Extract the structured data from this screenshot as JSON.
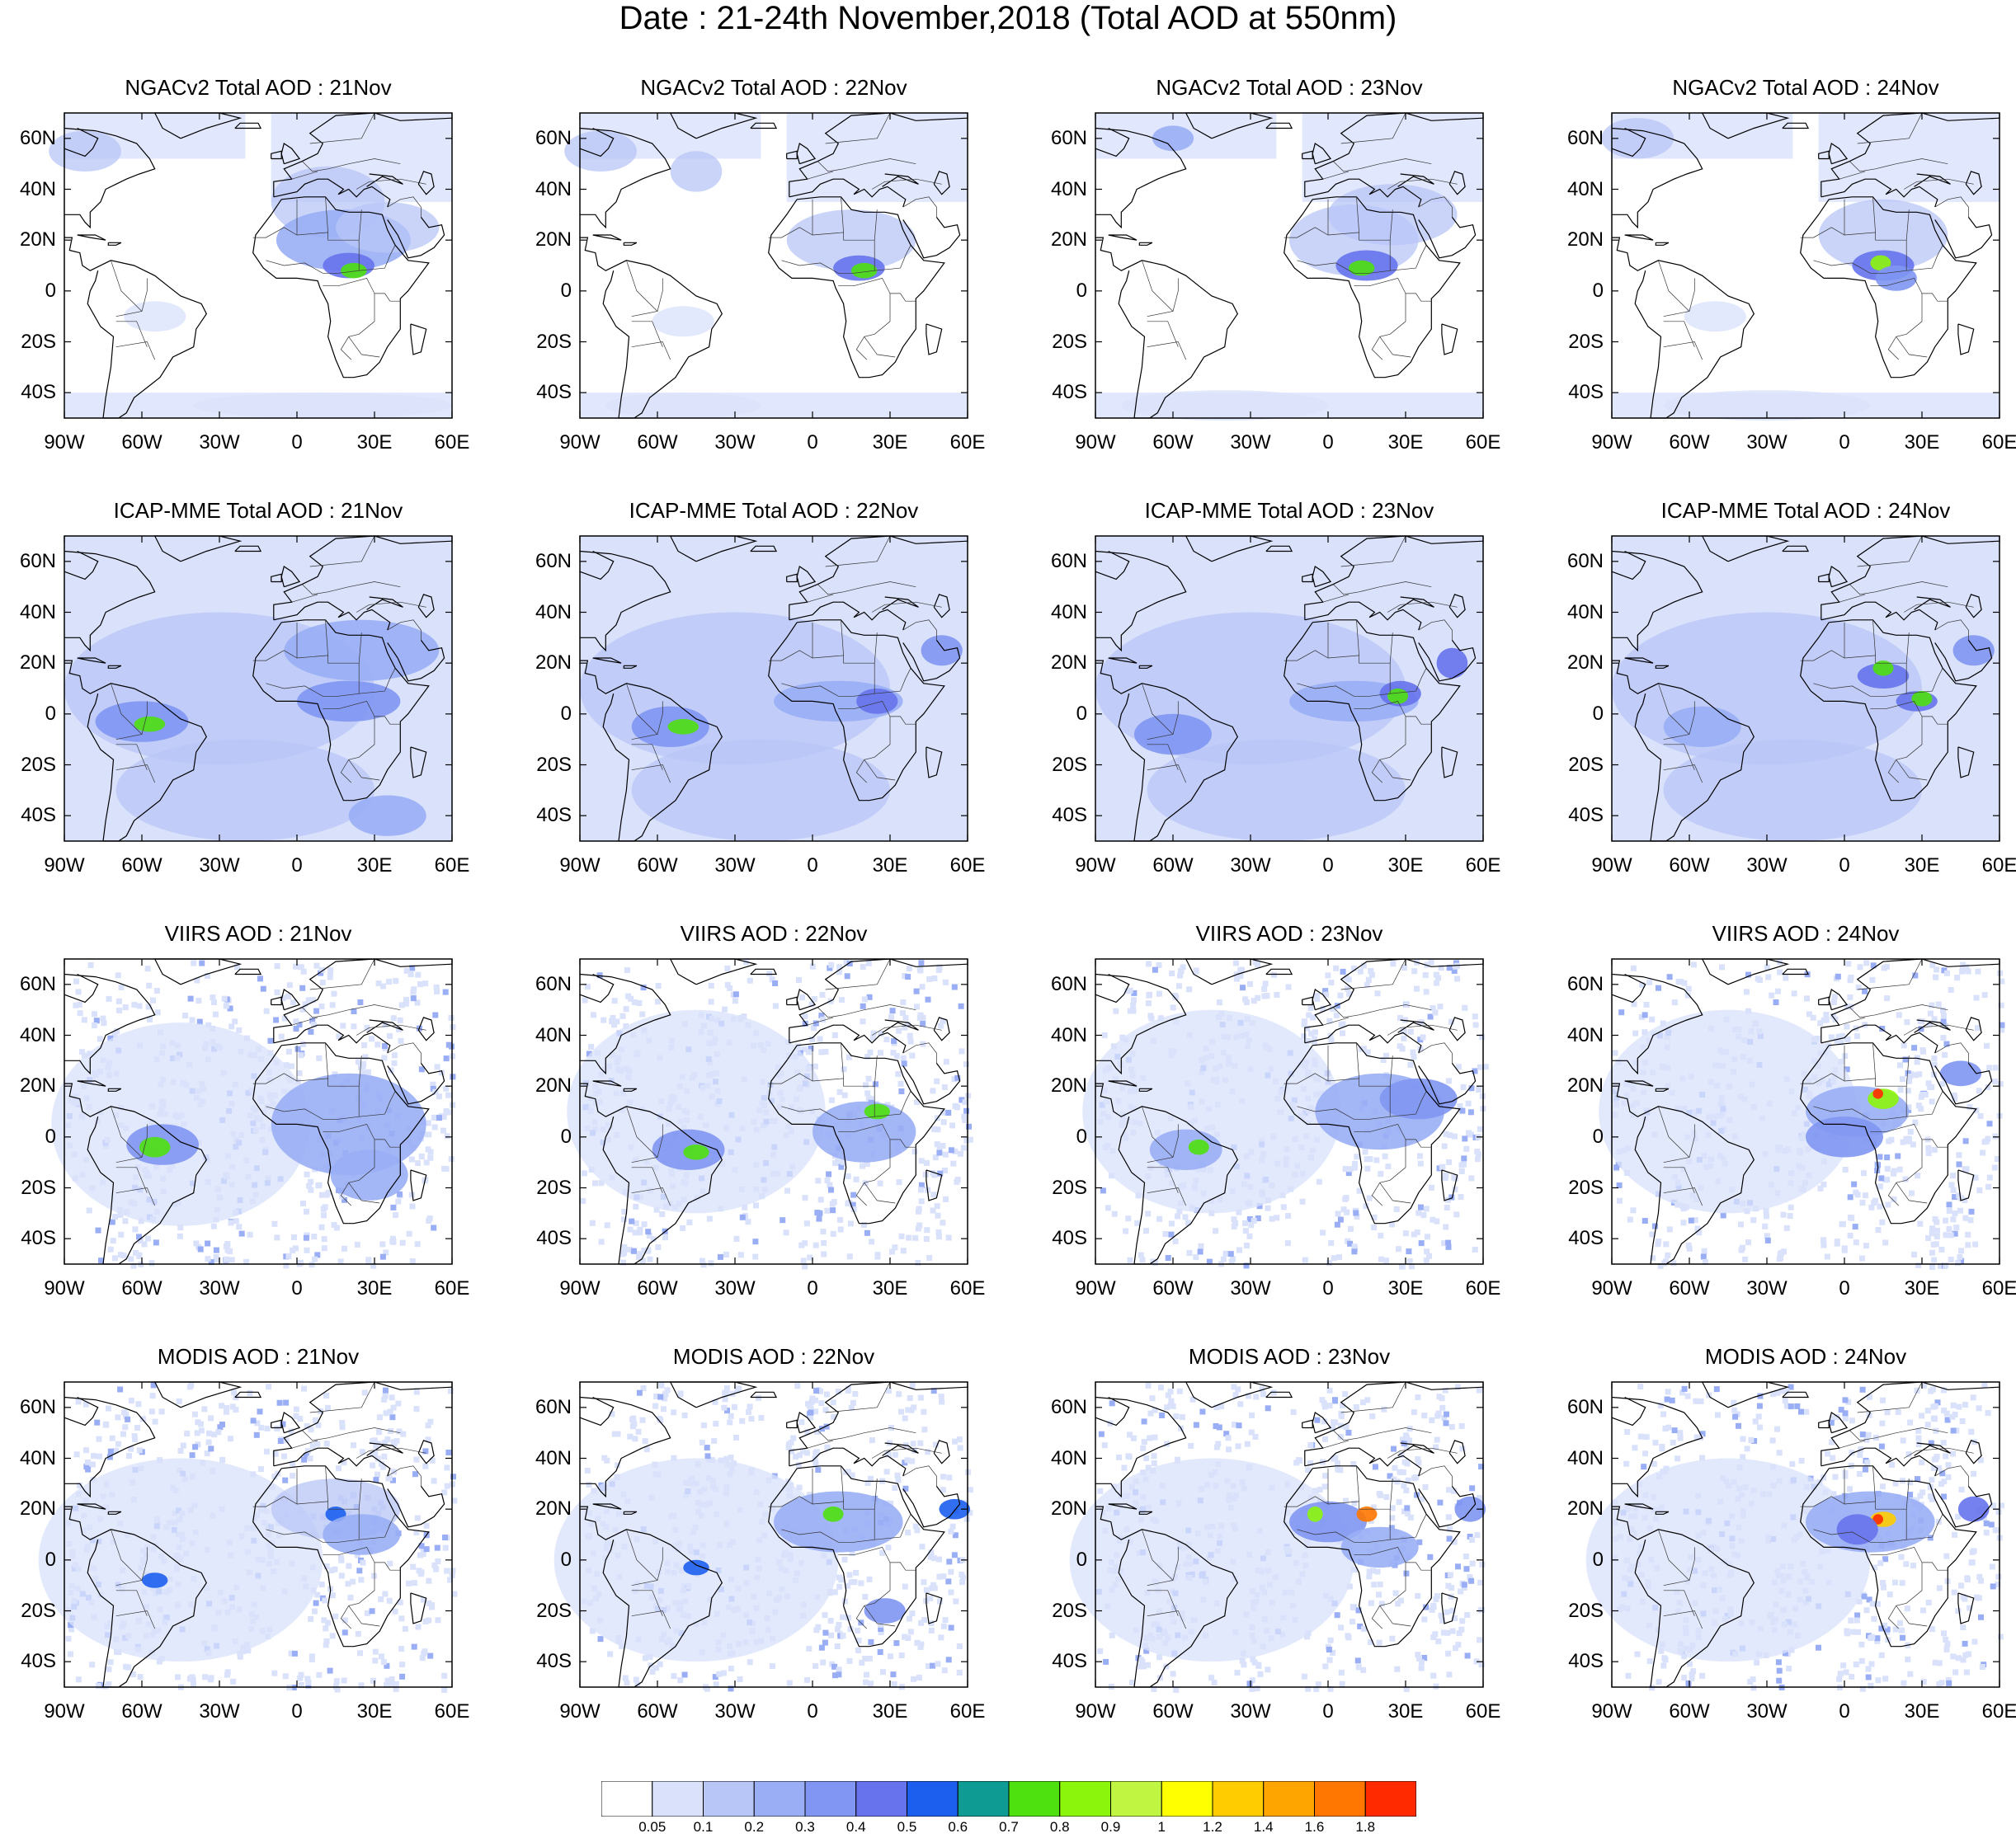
{
  "title": "Date : 21-24th November,2018 (Total AOD at 550nm)",
  "lat_ticks": [
    "60N",
    "40N",
    "20N",
    "0",
    "20S",
    "40S"
  ],
  "lon_ticks": [
    "90W",
    "60W",
    "30W",
    "0",
    "30E",
    "60E"
  ],
  "panels": [
    {
      "product": "NGACv2",
      "title": "NGACv2 Total AOD : 21Nov",
      "day": "21Nov"
    },
    {
      "product": "NGACv2",
      "title": "NGACv2 Total AOD : 22Nov",
      "day": "22Nov"
    },
    {
      "product": "NGACv2",
      "title": "NGACv2 Total AOD : 23Nov",
      "day": "23Nov"
    },
    {
      "product": "NGACv2",
      "title": "NGACv2 Total AOD : 24Nov",
      "day": "24Nov"
    },
    {
      "product": "ICAP-MME",
      "title": "ICAP-MME Total AOD : 21Nov",
      "day": "21Nov"
    },
    {
      "product": "ICAP-MME",
      "title": "ICAP-MME Total AOD : 22Nov",
      "day": "22Nov"
    },
    {
      "product": "ICAP-MME",
      "title": "ICAP-MME Total AOD : 23Nov",
      "day": "23Nov"
    },
    {
      "product": "ICAP-MME",
      "title": "ICAP-MME Total AOD : 24Nov",
      "day": "24Nov"
    },
    {
      "product": "VIIRS",
      "title": "VIIRS AOD : 21Nov",
      "day": "21Nov"
    },
    {
      "product": "VIIRS",
      "title": "VIIRS AOD : 22Nov",
      "day": "22Nov"
    },
    {
      "product": "VIIRS",
      "title": "VIIRS AOD : 23Nov",
      "day": "23Nov"
    },
    {
      "product": "VIIRS",
      "title": "VIIRS AOD : 24Nov",
      "day": "24Nov"
    },
    {
      "product": "MODIS",
      "title": "MODIS AOD : 21Nov",
      "day": "21Nov"
    },
    {
      "product": "MODIS",
      "title": "MODIS AOD : 22Nov",
      "day": "22Nov"
    },
    {
      "product": "MODIS",
      "title": "MODIS AOD : 23Nov",
      "day": "23Nov"
    },
    {
      "product": "MODIS",
      "title": "MODIS AOD : 24Nov",
      "day": "24Nov"
    }
  ],
  "map_extent": {
    "lon_min": -90,
    "lon_max": 60,
    "lat_min": -50,
    "lat_max": 70
  },
  "colorbar": {
    "colors": [
      "#ffffff",
      "#d9e1fb",
      "#b8c6f7",
      "#99aef5",
      "#8096f2",
      "#6673ec",
      "#1c5fee",
      "#0e9b94",
      "#4fe00f",
      "#8cf50c",
      "#c0f542",
      "#ffff00",
      "#ffcc00",
      "#ffa500",
      "#ff7700",
      "#ff2a00"
    ],
    "labels": [
      "0.05",
      "0.1",
      "0.2",
      "0.3",
      "0.4",
      "0.5",
      "0.6",
      "0.7",
      "0.8",
      "0.9",
      "1",
      "1.2",
      "1.4",
      "1.6",
      "1.8"
    ]
  }
}
